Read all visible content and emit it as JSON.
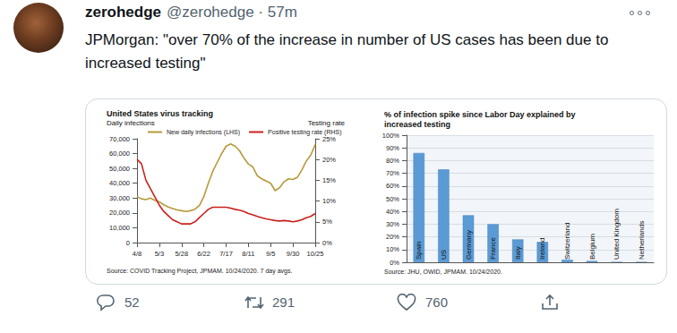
{
  "tweet": {
    "name": "zerohedge",
    "meta": "@zerohedge · 57m",
    "text": "JPMorgan: \"over 70% of the increase in number of US cases has been due to increased testing\"",
    "replies": 52,
    "retweets": 291,
    "likes": 760
  },
  "chart_data": [
    {
      "type": "line",
      "title": "United States virus tracking",
      "y_label": "Daily infections",
      "y2_label": "Testing rate",
      "source": "Source: COVID Tracking Project, JPMAM. 10/24/2020. 7 day avgs.",
      "categories": [
        "4/8",
        null,
        null,
        null,
        null,
        "5/3",
        null,
        null,
        null,
        null,
        "5/28",
        null,
        null,
        null,
        null,
        "6/22",
        null,
        null,
        null,
        null,
        "7/17",
        null,
        null,
        null,
        null,
        "8/11",
        null,
        null,
        null,
        null,
        "9/5",
        null,
        null,
        null,
        null,
        "9/30",
        null,
        null,
        null,
        null,
        "10/25"
      ],
      "series": [
        {
          "name": "New daily infections (LHS)",
          "color": "#b59a3a",
          "values": [
            31000,
            29500,
            29000,
            30000,
            28500,
            27500,
            25500,
            24000,
            23000,
            22000,
            21500,
            21000,
            21500,
            22500,
            25000,
            31000,
            40000,
            48000,
            54000,
            60000,
            65000,
            66500,
            65000,
            62000,
            57000,
            53000,
            51000,
            45000,
            43000,
            41500,
            40000,
            35000,
            37000,
            41000,
            43000,
            42500,
            44000,
            49000,
            55000,
            59000,
            66000
          ]
        },
        {
          "name": "Positive testing rate (RHS)",
          "color": "#c8211c",
          "axis": "y2",
          "values": [
            20,
            19,
            15,
            13,
            11,
            9,
            7.5,
            6.5,
            5.5,
            5,
            4.5,
            4.5,
            4.5,
            5,
            6,
            7,
            8,
            8.5,
            8.5,
            8.5,
            8.5,
            8.3,
            8,
            7.8,
            7.5,
            7,
            6.7,
            6.3,
            6,
            5.7,
            5.5,
            5.3,
            5.2,
            5.3,
            5.2,
            5,
            5.2,
            5.5,
            6,
            6.3,
            7
          ]
        }
      ],
      "ylim": [
        0,
        70000
      ],
      "yticks": [
        0,
        {
          "value": 10000,
          "label": "10,000"
        },
        {
          "value": 20000,
          "label": "20,000"
        },
        {
          "value": 30000,
          "label": "30,000"
        },
        {
          "value": 40000,
          "label": "40,000"
        },
        {
          "value": 50000,
          "label": "50,000"
        },
        {
          "value": 60000,
          "label": "60,000"
        },
        {
          "value": 70000,
          "label": "70,000"
        }
      ],
      "y2lim": [
        0,
        25
      ],
      "y2ticks": [
        {
          "value": 0,
          "label": "0%"
        },
        {
          "value": 5,
          "label": "5%"
        },
        {
          "value": 10,
          "label": "10%"
        },
        {
          "value": 15,
          "label": "15%"
        },
        {
          "value": 20,
          "label": "20%"
        },
        {
          "value": 25,
          "label": "25%"
        }
      ],
      "grid": false,
      "legend": "top"
    },
    {
      "type": "bar",
      "title": "% of infection spike since Labor Day explained by\nincreased testing",
      "source": "Source: JHU, OWID, JPMAM. 10/24/2020.",
      "categories": [
        "Spain",
        "US",
        "Germany",
        "France",
        "Italy",
        "Ireland",
        "Switzerland",
        "Belgium",
        "United Kingdom",
        "Netherlands"
      ],
      "values": [
        86,
        73,
        37,
        30,
        18,
        16,
        2,
        1,
        0,
        0
      ],
      "color": "#5b9bd5",
      "ylim": [
        0,
        100
      ],
      "yticks": [
        {
          "value": 0,
          "label": "0%"
        },
        {
          "value": 10,
          "label": "10%"
        },
        {
          "value": 20,
          "label": "20%"
        },
        {
          "value": 30,
          "label": "30%"
        },
        {
          "value": 40,
          "label": "40%"
        },
        {
          "value": 50,
          "label": "50%"
        },
        {
          "value": 60,
          "label": "60%"
        },
        {
          "value": 70,
          "label": "70%"
        },
        {
          "value": 80,
          "label": "80%"
        },
        {
          "value": 90,
          "label": "90%"
        },
        {
          "value": 100,
          "label": "100%"
        }
      ],
      "grid": true
    }
  ]
}
